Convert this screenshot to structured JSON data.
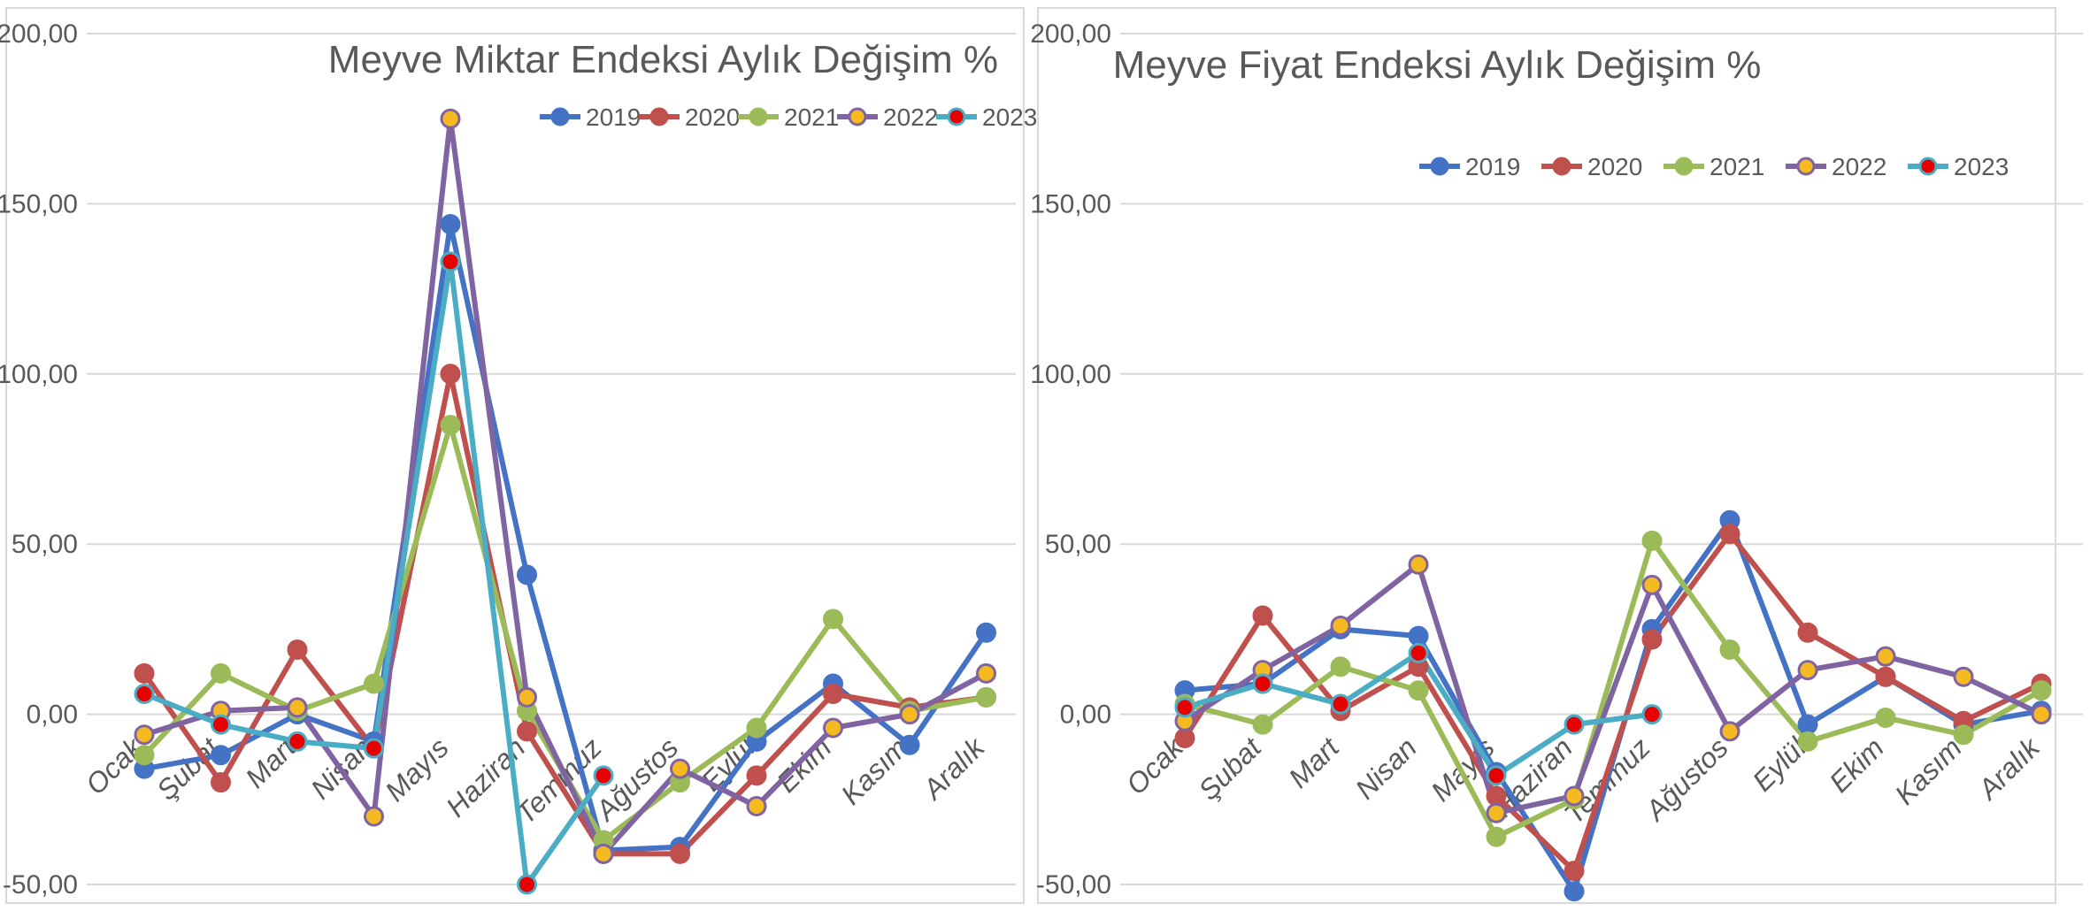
{
  "colors": {
    "2019": "#4472C4",
    "2020": "#C0504D",
    "2021": "#9BBB59",
    "2022": "#8064A2",
    "2023": "#4BACC6",
    "marker_gold": "#F5B921",
    "marker_red": "#E60000",
    "grid": "#d9d9d9",
    "text": "#595959"
  },
  "chart_data": [
    {
      "type": "line",
      "title": "Meyve Miktar Endeksi Aylık Değişim %",
      "categories": [
        "Ocak",
        "Şubat",
        "Mart",
        "Nisan",
        "Mayıs",
        "Haziran",
        "Temmuz",
        "Ağustos",
        "Eylül",
        "Ekim",
        "Kasım",
        "Aralık"
      ],
      "ylim": [
        -50,
        200
      ],
      "yticks": [
        "-50,00",
        "0,00",
        "50,00",
        "100,00",
        "150,00",
        "200,00"
      ],
      "ytick_values": [
        -50,
        0,
        50,
        100,
        150,
        200
      ],
      "grid": true,
      "legend": "top-right",
      "series": [
        {
          "name": "2019",
          "values": [
            -16,
            -12,
            0,
            -8,
            144,
            41,
            -40,
            -39,
            -8,
            9,
            -9,
            24
          ]
        },
        {
          "name": "2020",
          "values": [
            12,
            -20,
            19,
            -10,
            100,
            -5,
            -41,
            -41,
            -18,
            6,
            2,
            5
          ]
        },
        {
          "name": "2021",
          "values": [
            -12,
            12,
            1,
            9,
            85,
            1,
            -37,
            -20,
            -4,
            28,
            1,
            5
          ]
        },
        {
          "name": "2022",
          "values": [
            -6,
            1,
            2,
            -30,
            175,
            5,
            -41,
            -16,
            -27,
            -4,
            0,
            12
          ]
        },
        {
          "name": "2023",
          "values": [
            6,
            -3,
            -8,
            -10,
            133,
            -50,
            -18,
            null,
            null,
            null,
            null,
            null
          ]
        }
      ]
    },
    {
      "type": "line",
      "title": "Meyve Fiyat Endeksi Aylık Değişim %",
      "categories": [
        "Ocak",
        "Şubat",
        "Mart",
        "Nisan",
        "Mayıs",
        "Haziran",
        "Temmuz",
        "Ağustos",
        "Eylül",
        "Ekim",
        "Kasım",
        "Aralık"
      ],
      "ylim": [
        -50,
        200
      ],
      "yticks": [
        "-50,00",
        "0,00",
        "50,00",
        "100,00",
        "150,00",
        "200,00"
      ],
      "ytick_values": [
        -50,
        0,
        50,
        100,
        150,
        200
      ],
      "grid": true,
      "legend": "top-center",
      "series": [
        {
          "name": "2019",
          "values": [
            7,
            9,
            25,
            23,
            -17,
            -52,
            25,
            57,
            -3,
            11,
            -3,
            1
          ]
        },
        {
          "name": "2020",
          "values": [
            -7,
            29,
            1,
            14,
            -24,
            -46,
            22,
            53,
            24,
            11,
            -2,
            9
          ]
        },
        {
          "name": "2021",
          "values": [
            3,
            -3,
            14,
            7,
            -36,
            -25,
            51,
            19,
            -8,
            -1,
            -6,
            7
          ]
        },
        {
          "name": "2022",
          "values": [
            -2,
            13,
            26,
            44,
            -29,
            -24,
            38,
            -5,
            13,
            17,
            11,
            0
          ]
        },
        {
          "name": "2023",
          "values": [
            2,
            9,
            3,
            18,
            -18,
            -3,
            0,
            null,
            null,
            null,
            null,
            null
          ]
        }
      ]
    }
  ]
}
